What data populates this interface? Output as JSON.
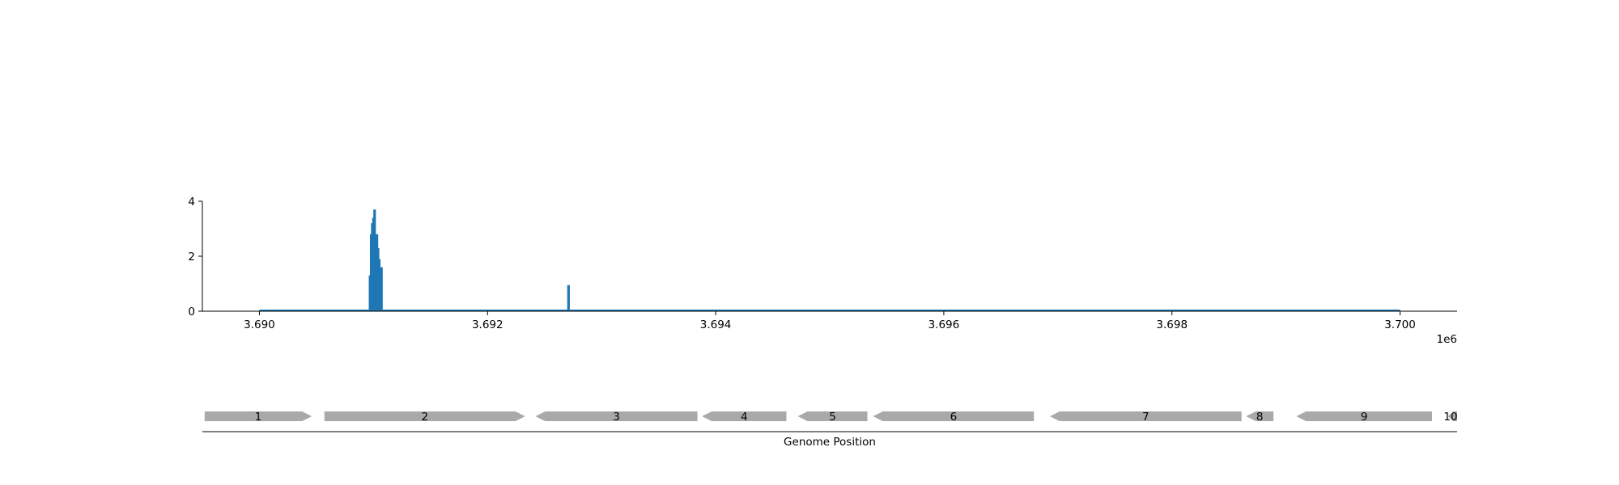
{
  "chart_data": [
    {
      "type": "bar",
      "title": "",
      "xlabel": "",
      "ylabel": "",
      "xlim": [
        3689500,
        3700500
      ],
      "ylim": [
        0,
        4
      ],
      "x_offset_label": "1e6",
      "x_ticks": [
        {
          "value": 3690000,
          "label": "3.690"
        },
        {
          "value": 3692000,
          "label": "3.692"
        },
        {
          "value": 3694000,
          "label": "3.694"
        },
        {
          "value": 3696000,
          "label": "3.696"
        },
        {
          "value": 3698000,
          "label": "3.698"
        },
        {
          "value": 3700000,
          "label": "3.700"
        }
      ],
      "y_ticks": [
        {
          "value": 0,
          "label": "0"
        },
        {
          "value": 2,
          "label": "2"
        },
        {
          "value": 4,
          "label": "4"
        }
      ],
      "baseline_range": [
        3690000,
        3700000
      ],
      "bar_color": "#1f77b4",
      "bars": [
        {
          "x": 3690970,
          "y": 1.3
        },
        {
          "x": 3690980,
          "y": 2.8
        },
        {
          "x": 3690990,
          "y": 3.2
        },
        {
          "x": 3691000,
          "y": 3.4
        },
        {
          "x": 3691010,
          "y": 3.7
        },
        {
          "x": 3691020,
          "y": 2.8
        },
        {
          "x": 3691030,
          "y": 2.8
        },
        {
          "x": 3691040,
          "y": 2.3
        },
        {
          "x": 3691050,
          "y": 1.9
        },
        {
          "x": 3691060,
          "y": 1.6
        },
        {
          "x": 3691070,
          "y": 1.6
        },
        {
          "x": 3692710,
          "y": 0.95
        }
      ],
      "grid": false,
      "legend": "none"
    },
    {
      "type": "gene-track",
      "xlabel": "Genome Position",
      "xlim": [
        3689500,
        3700500
      ],
      "gene_color": "#a9a9a9",
      "genes": [
        {
          "label": "1",
          "start": 3689520,
          "end": 3690460,
          "strand": "+"
        },
        {
          "label": "2",
          "start": 3690570,
          "end": 3692330,
          "strand": "+"
        },
        {
          "label": "3",
          "start": 3692420,
          "end": 3693840,
          "strand": "-"
        },
        {
          "label": "4",
          "start": 3693880,
          "end": 3694620,
          "strand": "-"
        },
        {
          "label": "5",
          "start": 3694720,
          "end": 3695330,
          "strand": "-"
        },
        {
          "label": "6",
          "start": 3695380,
          "end": 3696790,
          "strand": "-"
        },
        {
          "label": "7",
          "start": 3696930,
          "end": 3698610,
          "strand": "-"
        },
        {
          "label": "8",
          "start": 3698650,
          "end": 3698890,
          "strand": "-"
        },
        {
          "label": "9",
          "start": 3699090,
          "end": 3700280,
          "strand": "-"
        },
        {
          "label": "10",
          "start": 3700420,
          "end": 3700500,
          "strand": "-"
        }
      ]
    }
  ]
}
